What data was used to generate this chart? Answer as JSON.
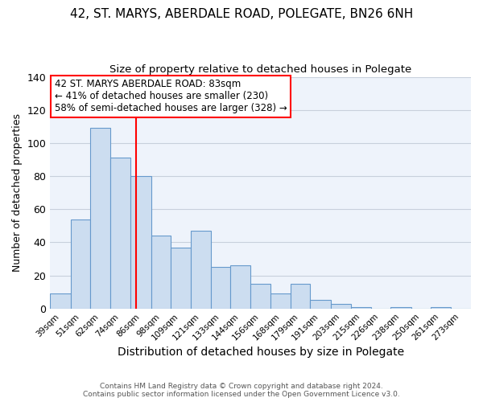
{
  "title": "42, ST. MARYS, ABERDALE ROAD, POLEGATE, BN26 6NH",
  "subtitle": "Size of property relative to detached houses in Polegate",
  "xlabel": "Distribution of detached houses by size in Polegate",
  "ylabel": "Number of detached properties",
  "bar_labels": [
    "39sqm",
    "51sqm",
    "62sqm",
    "74sqm",
    "86sqm",
    "98sqm",
    "109sqm",
    "121sqm",
    "133sqm",
    "144sqm",
    "156sqm",
    "168sqm",
    "179sqm",
    "191sqm",
    "203sqm",
    "215sqm",
    "226sqm",
    "238sqm",
    "250sqm",
    "261sqm",
    "273sqm"
  ],
  "bar_values": [
    9,
    54,
    109,
    91,
    80,
    44,
    37,
    47,
    25,
    26,
    15,
    9,
    15,
    5,
    3,
    1,
    0,
    1,
    0,
    1,
    0
  ],
  "bar_color": "#ccddf0",
  "bar_edge_color": "#6699cc",
  "vline_x": 83,
  "vline_color": "red",
  "ylim": [
    0,
    140
  ],
  "yticks": [
    0,
    20,
    40,
    60,
    80,
    100,
    120,
    140
  ],
  "annotation_lines": [
    "42 ST. MARYS ABERDALE ROAD: 83sqm",
    "← 41% of detached houses are smaller (230)",
    "58% of semi-detached houses are larger (328) →"
  ],
  "annotation_box_color": "white",
  "annotation_box_edge_color": "red",
  "footer_line1": "Contains HM Land Registry data © Crown copyright and database right 2024.",
  "footer_line2": "Contains public sector information licensed under the Open Government Licence v3.0.",
  "plot_facecolor": "#eef3fb",
  "grid_color": "#c8d0dc"
}
